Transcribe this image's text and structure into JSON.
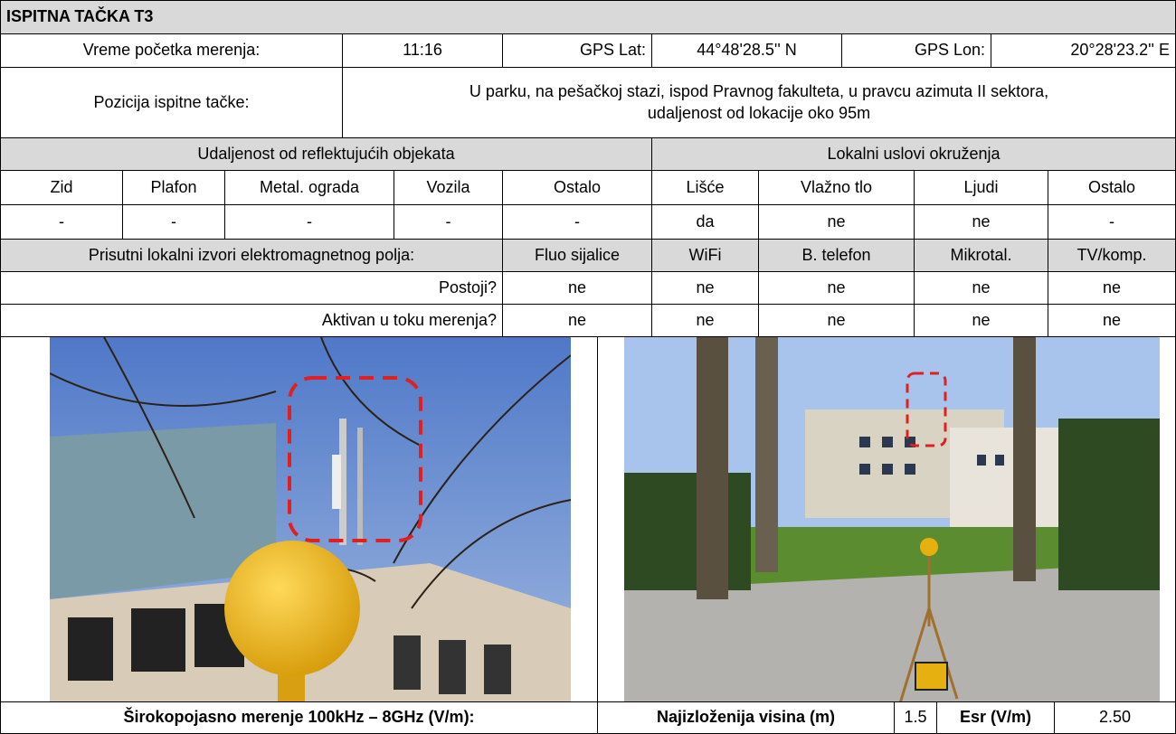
{
  "header": {
    "title": "ISPITNA TAČKA T3"
  },
  "info": {
    "time_label": "Vreme početka merenja:",
    "time": "11:16",
    "lat_label": "GPS Lat:",
    "lat": "44°48'28.5'' N",
    "lon_label": "GPS Lon:",
    "lon": "20°28'23.2'' E"
  },
  "position": {
    "label": "Pozicija ispitne tačke:",
    "lines": [
      "U parku, na pešačkoj stazi, ispod Pravnog fakulteta, u pravcu azimuta II sektora,",
      "udaljenost od lokacije oko 95m"
    ]
  },
  "reflect": {
    "title": "Udaljenost od reflektujućih objekata",
    "columns": [
      "Zid",
      "Plafon",
      "Metal. ograda",
      "Vozila",
      "Ostalo"
    ],
    "values": [
      "-",
      "-",
      "-",
      "-",
      "-"
    ]
  },
  "local": {
    "title": "Lokalni uslovi okruženja",
    "columns": [
      "Lišće",
      "Vlažno tlo",
      "Ljudi",
      "Ostalo"
    ],
    "values": [
      "da",
      "ne",
      "ne",
      "-"
    ]
  },
  "sources": {
    "title": "Prisutni lokalni izvori elektromagnetnog polja:",
    "columns": [
      "Fluo sijalice",
      "WiFi",
      "B. telefon",
      "Mikrotal.",
      "TV/komp."
    ],
    "rows": [
      {
        "label": "Postoji?",
        "values": [
          "ne",
          "ne",
          "ne",
          "ne",
          "ne"
        ]
      },
      {
        "label": "Aktivan u toku merenja?",
        "values": [
          "ne",
          "ne",
          "ne",
          "ne",
          "ne"
        ]
      }
    ]
  },
  "footer": {
    "broadband_label": "Širokopojasno merenje 100kHz – 8GHz (V/m):",
    "height_label": "Najizloženija visina (m)",
    "height": "1.5",
    "esr_label": "Esr (V/m)",
    "esr": "2.50"
  }
}
